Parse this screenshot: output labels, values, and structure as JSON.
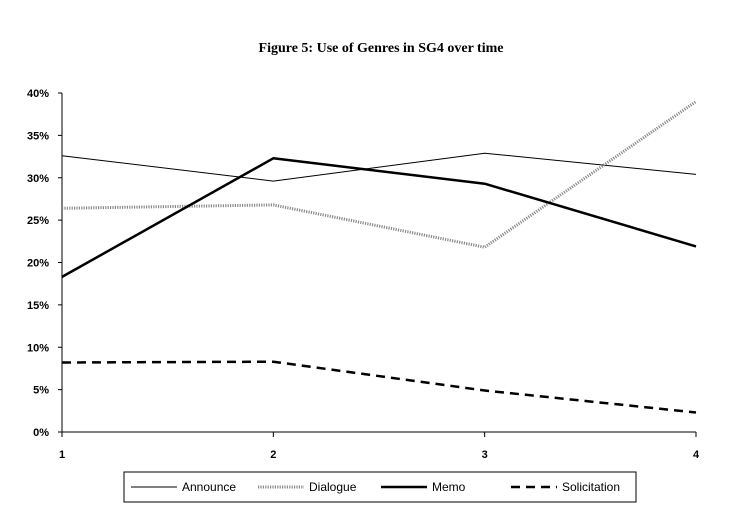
{
  "chart_data": {
    "type": "line",
    "title": "Figure 5: Use of Genres in SG4 over time",
    "xlabel": "",
    "ylabel": "",
    "categories": [
      "1",
      "2",
      "3",
      "4"
    ],
    "y_ticks": [
      "0%",
      "5%",
      "10%",
      "15%",
      "20%",
      "25%",
      "30%",
      "35%",
      "40%"
    ],
    "ylim": [
      0,
      40
    ],
    "grid": false,
    "legend_position": "bottom",
    "series": [
      {
        "name": "Announce",
        "values": [
          32.6,
          29.6,
          32.9,
          30.4
        ],
        "style": "thin",
        "color": "#000000"
      },
      {
        "name": "Dialogue",
        "values": [
          26.4,
          26.8,
          21.8,
          39.0
        ],
        "style": "dotted",
        "color": "#8a8a8a"
      },
      {
        "name": "Memo",
        "values": [
          18.3,
          32.3,
          29.3,
          21.9
        ],
        "style": "thick",
        "color": "#000000"
      },
      {
        "name": "Solicitation",
        "values": [
          8.2,
          8.3,
          4.9,
          2.3
        ],
        "style": "dashed",
        "color": "#000000"
      }
    ]
  }
}
